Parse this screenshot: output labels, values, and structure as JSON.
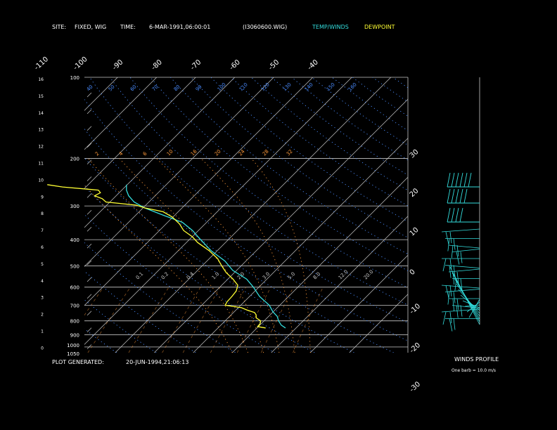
{
  "header": {
    "site_label": "SITE:",
    "site_value": "FIXED, WIG",
    "time_label": "TIME:",
    "time_value": "6-MAR-1991,06:00:01",
    "file_id": "(I3060600.WIG)",
    "temp_legend": "TEMP/WINDS",
    "dew_legend": "DEWPOINT"
  },
  "footer": {
    "generated_label": "PLOT GENERATED:",
    "generated_value": "20-JUN-1994,21:06:13"
  },
  "winds_panel": {
    "title": "WINDS PROFILE",
    "note": "One barb = 10.0 m/s"
  },
  "colors": {
    "background": "#000000",
    "grid": "#c8c8c8",
    "temperature": "#33dddd",
    "dewpoint": "#ffff33",
    "dry_adiabat": "#4a8cff",
    "moist_adiabat": "#ff9a3a",
    "mixing_ratio": "#ff9a3a",
    "wind": "#33dddd",
    "text": "#ffffff"
  },
  "chart_data": {
    "type": "line",
    "chart_kind": "skew-T log-p thermodynamic diagram",
    "title": "",
    "xlabel": "",
    "ylabel": "",
    "pressure_ticks": [
      "100",
      "200",
      "300",
      "400",
      "500",
      "600",
      "700",
      "800",
      "900",
      "1000",
      "1050"
    ],
    "height_ticks": [
      "16",
      "15",
      "14",
      "13",
      "12",
      "11",
      "10",
      "9",
      "8",
      "7",
      "6",
      "5",
      "4",
      "3",
      "2",
      "1",
      "0"
    ],
    "temperature_ticks_top": [
      "-110",
      "-100",
      "-90",
      "-80",
      "-70",
      "-60",
      "-50",
      "-40"
    ],
    "temperature_ticks_right": [
      "-30",
      "-20",
      "-10",
      "0",
      "10",
      "20",
      "30"
    ],
    "dry_adiabat_labels": [
      "40",
      "50",
      "60",
      "70",
      "80",
      "90",
      "100",
      "110",
      "120",
      "130",
      "140",
      "150",
      "160"
    ],
    "mixing_ratio_labels": [
      "0.1",
      "0.2",
      "0.4",
      "1.0",
      "2.0",
      "3.0",
      "5.0",
      "8.0",
      "12.0",
      "20.0"
    ],
    "moist_labels": [
      "2",
      "4",
      "6",
      "10",
      "16",
      "20",
      "24",
      "28",
      "32"
    ],
    "grid": true,
    "series": [
      {
        "name": "TEMP/WINDS",
        "p": [
          850,
          830,
          800,
          770,
          740,
          700,
          650,
          600,
          560,
          520,
          480,
          440,
          400,
          370,
          345,
          325,
          305,
          290,
          275,
          262,
          250
        ],
        "t": [
          17.3,
          15.5,
          13.7,
          12.2,
          9.9,
          7.3,
          2.6,
          -1.4,
          -5.2,
          -11.0,
          -15.4,
          -21.5,
          -27.1,
          -31.5,
          -36.2,
          -42.8,
          -49.6,
          -53.8,
          -56.8,
          -58.8,
          -60.2
        ]
      },
      {
        "name": "DEWPOINT",
        "p": [
          850,
          840,
          820,
          800,
          780,
          760,
          745,
          730,
          715,
          700,
          680,
          650,
          620,
          590,
          560,
          530,
          500,
          470,
          440,
          410,
          390,
          370,
          350,
          330,
          315,
          305,
          298,
          290,
          282,
          275,
          268,
          262,
          255,
          250
        ],
        "t": [
          12.2,
          9.8,
          9.7,
          9.1,
          7.2,
          6.4,
          5.4,
          2.9,
          0.8,
          -4.0,
          -4.4,
          -4.5,
          -4.8,
          -5.9,
          -8.7,
          -12.1,
          -15.0,
          -17.9,
          -22.0,
          -27.1,
          -30.0,
          -33.8,
          -36.5,
          -40.1,
          -43.9,
          -49.6,
          -52.4,
          -61.0,
          -62.8,
          -65.5,
          -64.8,
          -66.0,
          -76.0,
          -80.5
        ]
      }
    ]
  }
}
